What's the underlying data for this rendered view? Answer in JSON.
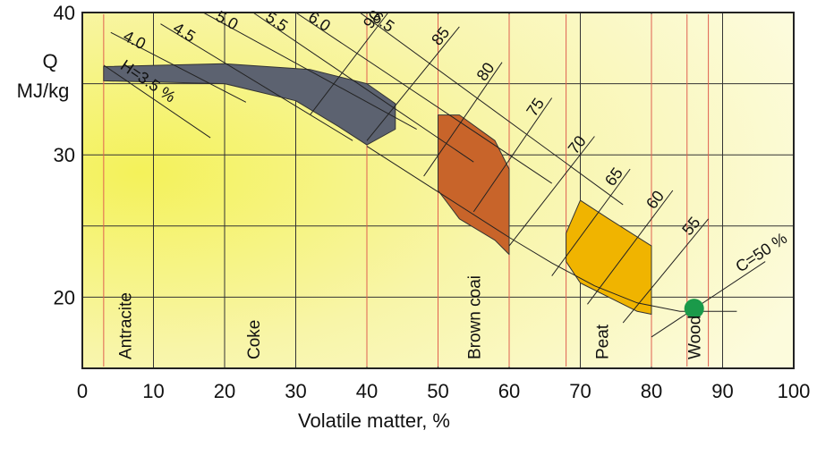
{
  "chart_data": {
    "type": "nomogram",
    "xlabel": "Volatile matter, %",
    "ylabel_line1": "Q",
    "ylabel_line2": "MJ/kg",
    "xlim": [
      0,
      100
    ],
    "ylim": [
      15,
      40
    ],
    "x_ticks": [
      0,
      10,
      20,
      30,
      40,
      50,
      60,
      70,
      80,
      90,
      100
    ],
    "y_ticks": [
      20,
      30,
      40
    ],
    "grid": true,
    "background": "yellow radial gradient",
    "colors": {
      "coke_region": "#5c6270",
      "brown_coal_region": "#c8642a",
      "peat_region": "#f0b400",
      "wood_point": "#1a9a4a",
      "fuel_marker_lines": "#e06050",
      "reference_lines": "#222222"
    },
    "hydrogen_lines": [
      {
        "label": "H=3.5 %",
        "from": [
          3,
          36.3
        ],
        "to": [
          18,
          31.2
        ]
      },
      {
        "label": "4.0",
        "from": [
          4,
          38.6
        ],
        "to": [
          23,
          33.7
        ]
      },
      {
        "label": "4.5",
        "from": [
          11,
          39.2
        ],
        "to": [
          38,
          31.0
        ]
      },
      {
        "label": "5.0",
        "from": [
          17,
          40.0
        ],
        "to": [
          47,
          31.8
        ]
      },
      {
        "label": "5.5",
        "from": [
          24,
          40.0
        ],
        "to": [
          55,
          29.5
        ]
      },
      {
        "label": "6.0",
        "from": [
          30,
          40.0
        ],
        "to": [
          66,
          28.0
        ]
      },
      {
        "label": "6.5",
        "from": [
          39,
          40.0
        ],
        "to": [
          76,
          26.5
        ]
      }
    ],
    "carbon_lines": [
      {
        "label": "90",
        "from": [
          32,
          32.8
        ],
        "to": [
          43,
          40.0
        ]
      },
      {
        "label": "85",
        "from": [
          40,
          31.0
        ],
        "to": [
          53,
          39.0
        ]
      },
      {
        "label": "80",
        "from": [
          48,
          28.5
        ],
        "to": [
          59,
          36.5
        ]
      },
      {
        "label": "75",
        "from": [
          55,
          26.0
        ],
        "to": [
          66,
          34.0
        ]
      },
      {
        "label": "70",
        "from": [
          60,
          23.6
        ],
        "to": [
          72,
          31.3
        ]
      },
      {
        "label": "65",
        "from": [
          66,
          21.5
        ],
        "to": [
          77,
          29.0
        ]
      },
      {
        "label": "60",
        "from": [
          71,
          19.5
        ],
        "to": [
          83,
          27.5
        ]
      },
      {
        "label": "55",
        "from": [
          76,
          18.2
        ],
        "to": [
          88,
          25.5
        ]
      },
      {
        "label": "C=50 %",
        "from": [
          80,
          17.2
        ],
        "to": [
          96,
          22.5
        ]
      }
    ],
    "lower_curve": {
      "points": [
        [
          40,
          30.6
        ],
        [
          50,
          27.4
        ],
        [
          60,
          24.2
        ],
        [
          66,
          22.4
        ],
        [
          72,
          20.8
        ],
        [
          78,
          19.6
        ],
        [
          84,
          19.0
        ],
        [
          92,
          19.0
        ]
      ]
    },
    "fuels": [
      {
        "name": "Antracite",
        "x": 3,
        "label_x": 6
      },
      {
        "name": "Coke",
        "x": 40,
        "label_x": 24
      },
      {
        "name": "Brown coai",
        "x": [
          50,
          60
        ],
        "label_x": 55
      },
      {
        "name": "Peat",
        "x": [
          68,
          80
        ],
        "label_x": 73
      },
      {
        "name": "Wood",
        "x": [
          85,
          88
        ],
        "label_x": 86
      }
    ],
    "regions": [
      {
        "name": "coke",
        "points": [
          [
            3,
            36.2
          ],
          [
            20,
            36.4
          ],
          [
            32,
            36.0
          ],
          [
            40,
            35.0
          ],
          [
            44,
            33.6
          ],
          [
            44,
            31.8
          ],
          [
            40,
            30.7
          ],
          [
            36,
            32.0
          ],
          [
            30,
            33.8
          ],
          [
            20,
            35.0
          ],
          [
            3,
            35.2
          ]
        ]
      },
      {
        "name": "brown-coal",
        "points": [
          [
            50,
            32.8
          ],
          [
            53,
            32.8
          ],
          [
            58,
            31.0
          ],
          [
            60,
            29.0
          ],
          [
            60,
            23.0
          ],
          [
            58,
            24.0
          ],
          [
            53,
            25.5
          ],
          [
            50,
            27.5
          ]
        ]
      },
      {
        "name": "peat",
        "points": [
          [
            70,
            26.8
          ],
          [
            74,
            25.5
          ],
          [
            80,
            23.6
          ],
          [
            80,
            18.8
          ],
          [
            78,
            19.0
          ],
          [
            70,
            21.0
          ],
          [
            68,
            22.5
          ],
          [
            68,
            24.5
          ]
        ]
      }
    ],
    "wood_point": {
      "x": 86,
      "y": 19.2
    }
  }
}
